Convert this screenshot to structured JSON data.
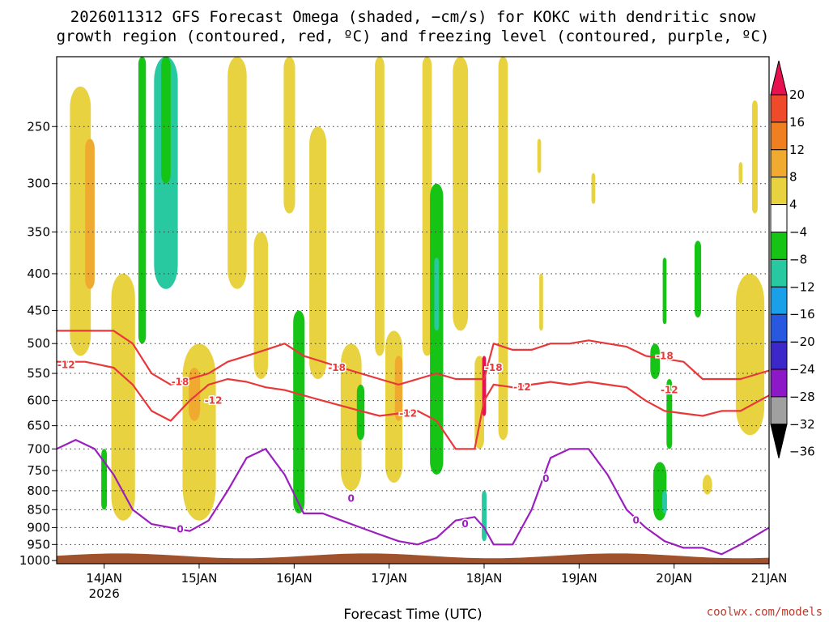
{
  "chart_data": {
    "type": "heatmap",
    "title": [
      "2026011312 GFS Forecast Omega (shaded, −cm/s) for KOKC with dendritic snow",
      "growth region (contoured, red, ºC) and freezing level (contoured, purple, ºC)"
    ],
    "xlabel": "Forecast Time (UTC)",
    "ylabel": "",
    "credit": "coolwx.com/models",
    "x_ticks": [
      {
        "label": "14JAN",
        "sub": "2026",
        "t": 0.5
      },
      {
        "label": "15JAN",
        "t": 1.5
      },
      {
        "label": "16JAN",
        "t": 2.5
      },
      {
        "label": "17JAN",
        "t": 3.5
      },
      {
        "label": "18JAN",
        "t": 4.5
      },
      {
        "label": "19JAN",
        "t": 5.5
      },
      {
        "label": "20JAN",
        "t": 6.5
      },
      {
        "label": "21JAN",
        "t": 7.5
      }
    ],
    "x_range_days": [
      0,
      7.5
    ],
    "y_ticks": [
      250,
      300,
      350,
      400,
      450,
      500,
      550,
      600,
      650,
      700,
      750,
      800,
      850,
      900,
      950,
      1000
    ],
    "y_range_hpa": [
      200,
      1010
    ],
    "colorbar": {
      "labels": [
        "20",
        "16",
        "12",
        "8",
        "4",
        "−4",
        "−8",
        "−12",
        "−16",
        "−20",
        "−24",
        "−28",
        "−32",
        "−36"
      ],
      "colors": [
        "#e8104f",
        "#ef4a2a",
        "#f07f22",
        "#f0aa30",
        "#e8d240",
        "#ffffff",
        "#16c416",
        "#28c8a0",
        "#1aa0e8",
        "#2858e0",
        "#3c28c8",
        "#8c18c8",
        "#a0a0a0",
        "#000000"
      ]
    },
    "ground_color": "#a0522d",
    "contours": [
      {
        "name": "dgz-top",
        "color": "#e8383a",
        "level": "-18",
        "t": [
          0,
          0.3,
          0.6,
          0.8,
          1.0,
          1.2,
          1.4,
          1.6,
          1.8,
          2.0,
          2.2,
          2.4,
          2.6,
          2.8,
          3.0,
          3.2,
          3.4,
          3.6,
          3.8,
          4.0,
          4.2,
          4.4,
          4.5,
          4.6,
          4.8,
          5.0,
          5.2,
          5.4,
          5.6,
          5.8,
          6.0,
          6.2,
          6.4,
          6.6,
          6.8,
          7.0,
          7.2,
          7.5
        ],
        "p": [
          480,
          480,
          480,
          500,
          550,
          570,
          560,
          550,
          530,
          520,
          510,
          500,
          520,
          530,
          540,
          550,
          560,
          570,
          560,
          550,
          560,
          560,
          560,
          500,
          510,
          510,
          500,
          500,
          495,
          500,
          505,
          520,
          525,
          530,
          560,
          560,
          560,
          545
        ]
      },
      {
        "name": "dgz-bottom",
        "color": "#e8383a",
        "level": "-12",
        "t": [
          0,
          0.3,
          0.6,
          0.8,
          1.0,
          1.2,
          1.4,
          1.6,
          1.8,
          2.0,
          2.2,
          2.4,
          2.6,
          2.8,
          3.0,
          3.2,
          3.4,
          3.6,
          3.8,
          4.0,
          4.2,
          4.4,
          4.5,
          4.6,
          4.8,
          5.0,
          5.2,
          5.4,
          5.6,
          5.8,
          6.0,
          6.2,
          6.4,
          6.6,
          6.8,
          7.0,
          7.2,
          7.5
        ],
        "p": [
          530,
          530,
          540,
          570,
          620,
          640,
          600,
          570,
          560,
          565,
          575,
          580,
          590,
          600,
          610,
          620,
          630,
          625,
          620,
          640,
          700,
          700,
          600,
          570,
          575,
          570,
          565,
          570,
          565,
          570,
          575,
          600,
          620,
          625,
          630,
          620,
          620,
          590
        ]
      },
      {
        "name": "freezing-level",
        "color": "#9b1fbf",
        "level": "0",
        "t": [
          0,
          0.2,
          0.4,
          0.6,
          0.8,
          1.0,
          1.2,
          1.4,
          1.6,
          1.8,
          2.0,
          2.2,
          2.4,
          2.6,
          2.8,
          3.0,
          3.2,
          3.4,
          3.6,
          3.8,
          4.0,
          4.2,
          4.4,
          4.5,
          4.6,
          4.8,
          5.0,
          5.2,
          5.4,
          5.6,
          5.8,
          6.0,
          6.2,
          6.4,
          6.6,
          6.8,
          7.0,
          7.2,
          7.5
        ],
        "p": [
          700,
          680,
          700,
          760,
          850,
          890,
          900,
          910,
          880,
          800,
          720,
          700,
          760,
          860,
          860,
          880,
          900,
          920,
          940,
          950,
          930,
          880,
          870,
          900,
          950,
          950,
          850,
          720,
          700,
          700,
          760,
          850,
          900,
          940,
          960,
          960,
          980,
          950,
          900
        ]
      }
    ],
    "contour_labels": [
      {
        "text": "-12",
        "t": 0.1,
        "p": 535,
        "color": "#e8383a"
      },
      {
        "text": "-18",
        "t": 1.3,
        "p": 565,
        "color": "#e8383a"
      },
      {
        "text": "-12",
        "t": 1.65,
        "p": 600,
        "color": "#e8383a"
      },
      {
        "text": "-18",
        "t": 2.95,
        "p": 540,
        "color": "#e8383a"
      },
      {
        "text": "-12",
        "t": 3.7,
        "p": 625,
        "color": "#e8383a"
      },
      {
        "text": "-18",
        "t": 4.6,
        "p": 540,
        "color": "#e8383a"
      },
      {
        "text": "-12",
        "t": 4.9,
        "p": 575,
        "color": "#e8383a"
      },
      {
        "text": "-18",
        "t": 6.4,
        "p": 520,
        "color": "#e8383a"
      },
      {
        "text": "-12",
        "t": 6.45,
        "p": 580,
        "color": "#e8383a"
      },
      {
        "text": "0",
        "t": 1.3,
        "p": 905,
        "color": "#9b1fbf"
      },
      {
        "text": "0",
        "t": 3.1,
        "p": 820,
        "color": "#9b1fbf"
      },
      {
        "text": "0",
        "t": 4.3,
        "p": 890,
        "color": "#9b1fbf"
      },
      {
        "text": "0",
        "t": 5.15,
        "p": 770,
        "color": "#9b1fbf"
      },
      {
        "text": "0",
        "t": 6.1,
        "p": 880,
        "color": "#9b1fbf"
      }
    ],
    "omega_patches": [
      {
        "t": 0.25,
        "p": [
          220,
          520
        ],
        "w": 0.22,
        "color": "#e8d240"
      },
      {
        "t": 0.35,
        "p": [
          260,
          420
        ],
        "w": 0.1,
        "color": "#f0aa30"
      },
      {
        "t": 0.7,
        "p": [
          400,
          880
        ],
        "w": 0.25,
        "color": "#e8d240"
      },
      {
        "t": 0.5,
        "p": [
          700,
          850
        ],
        "w": 0.06,
        "color": "#16c416"
      },
      {
        "t": 0.9,
        "p": [
          200,
          500
        ],
        "w": 0.08,
        "color": "#16c416"
      },
      {
        "t": 1.15,
        "p": [
          200,
          420
        ],
        "w": 0.25,
        "color": "#28c8a0"
      },
      {
        "t": 1.15,
        "p": [
          200,
          300
        ],
        "w": 0.1,
        "color": "#16c416"
      },
      {
        "t": 1.5,
        "p": [
          500,
          880
        ],
        "w": 0.35,
        "color": "#e8d240"
      },
      {
        "t": 1.45,
        "p": [
          540,
          640
        ],
        "w": 0.12,
        "color": "#f0aa30"
      },
      {
        "t": 1.9,
        "p": [
          200,
          420
        ],
        "w": 0.2,
        "color": "#e8d240"
      },
      {
        "t": 2.15,
        "p": [
          350,
          560
        ],
        "w": 0.15,
        "color": "#e8d240"
      },
      {
        "t": 2.45,
        "p": [
          200,
          330
        ],
        "w": 0.12,
        "color": "#e8d240"
      },
      {
        "t": 2.55,
        "p": [
          450,
          860
        ],
        "w": 0.12,
        "color": "#16c416"
      },
      {
        "t": 2.75,
        "p": [
          250,
          560
        ],
        "w": 0.18,
        "color": "#e8d240"
      },
      {
        "t": 3.1,
        "p": [
          500,
          800
        ],
        "w": 0.22,
        "color": "#e8d240"
      },
      {
        "t": 3.2,
        "p": [
          570,
          680
        ],
        "w": 0.08,
        "color": "#16c416"
      },
      {
        "t": 3.4,
        "p": [
          200,
          520
        ],
        "w": 0.1,
        "color": "#e8d240"
      },
      {
        "t": 3.55,
        "p": [
          480,
          780
        ],
        "w": 0.18,
        "color": "#e8d240"
      },
      {
        "t": 3.6,
        "p": [
          520,
          640
        ],
        "w": 0.08,
        "color": "#f0aa30"
      },
      {
        "t": 3.9,
        "p": [
          200,
          520
        ],
        "w": 0.1,
        "color": "#e8d240"
      },
      {
        "t": 4.0,
        "p": [
          300,
          760
        ],
        "w": 0.14,
        "color": "#16c416"
      },
      {
        "t": 4.0,
        "p": [
          380,
          480
        ],
        "w": 0.05,
        "color": "#28c8a0"
      },
      {
        "t": 4.25,
        "p": [
          200,
          480
        ],
        "w": 0.16,
        "color": "#e8d240"
      },
      {
        "t": 4.45,
        "p": [
          520,
          700
        ],
        "w": 0.1,
        "color": "#e8d240"
      },
      {
        "t": 4.5,
        "p": [
          520,
          630
        ],
        "w": 0.04,
        "color": "#e8104f"
      },
      {
        "t": 4.5,
        "p": [
          800,
          940
        ],
        "w": 0.05,
        "color": "#28c8a0"
      },
      {
        "t": 4.7,
        "p": [
          200,
          680
        ],
        "w": 0.1,
        "color": "#e8d240"
      },
      {
        "t": 5.08,
        "p": [
          260,
          290
        ],
        "w": 0.04,
        "color": "#e8d240"
      },
      {
        "t": 5.65,
        "p": [
          290,
          320
        ],
        "w": 0.04,
        "color": "#e8d240"
      },
      {
        "t": 5.1,
        "p": [
          400,
          480
        ],
        "w": 0.04,
        "color": "#e8d240"
      },
      {
        "t": 6.3,
        "p": [
          500,
          560
        ],
        "w": 0.1,
        "color": "#16c416"
      },
      {
        "t": 6.4,
        "p": [
          380,
          470
        ],
        "w": 0.04,
        "color": "#16c416"
      },
      {
        "t": 6.75,
        "p": [
          360,
          460
        ],
        "w": 0.07,
        "color": "#16c416"
      },
      {
        "t": 6.45,
        "p": [
          560,
          700
        ],
        "w": 0.06,
        "color": "#16c416"
      },
      {
        "t": 6.35,
        "p": [
          730,
          880
        ],
        "w": 0.14,
        "color": "#16c416"
      },
      {
        "t": 6.4,
        "p": [
          800,
          860
        ],
        "w": 0.05,
        "color": "#28c8a0"
      },
      {
        "t": 6.85,
        "p": [
          760,
          810
        ],
        "w": 0.1,
        "color": "#e8d240"
      },
      {
        "t": 7.3,
        "p": [
          400,
          670
        ],
        "w": 0.3,
        "color": "#e8d240"
      },
      {
        "t": 7.35,
        "p": [
          230,
          330
        ],
        "w": 0.06,
        "color": "#e8d240"
      },
      {
        "t": 7.2,
        "p": [
          280,
          300
        ],
        "w": 0.04,
        "color": "#e8d240"
      }
    ]
  }
}
